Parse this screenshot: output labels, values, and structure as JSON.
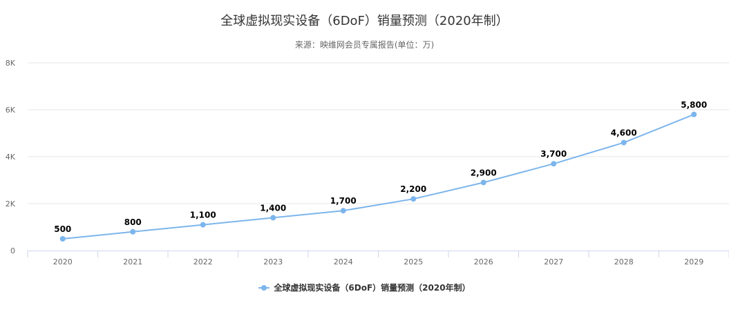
{
  "title": "全球虚拟现实设备（6DoF）销量预测（2020年制）",
  "subtitle": "来源：映维网会员专属报告(单位：万)",
  "legend": {
    "label": "全球虚拟现实设备（6DoF）销量预测（2020年制）"
  },
  "colors": {
    "series": "#7cb5ec",
    "grid": "#e6e6e6",
    "axis": "#ccd6eb",
    "label": "#666666"
  },
  "chart_data": {
    "type": "line",
    "title": "全球虚拟现实设备（6DoF）销量预测（2020年制）",
    "subtitle": "来源：映维网会员专属报告(单位：万)",
    "categories": [
      "2020",
      "2021",
      "2022",
      "2023",
      "2024",
      "2025",
      "2026",
      "2027",
      "2028",
      "2029"
    ],
    "series": [
      {
        "name": "全球虚拟现实设备（6DoF）销量预测（2020年制）",
        "values": [
          500,
          800,
          1100,
          1400,
          1700,
          2200,
          2900,
          3700,
          4600,
          5800
        ],
        "data_labels": [
          "500",
          "800",
          "1,100",
          "1,400",
          "1,700",
          "2,200",
          "2,900",
          "3,700",
          "4,600",
          "5,800"
        ]
      }
    ],
    "ylim": [
      0,
      8000
    ],
    "yticks": [
      0,
      2000,
      4000,
      6000,
      8000
    ],
    "ytick_labels": [
      "0",
      "2K",
      "4K",
      "6K",
      "8K"
    ],
    "grid": true,
    "legend_position": "bottom-center"
  }
}
